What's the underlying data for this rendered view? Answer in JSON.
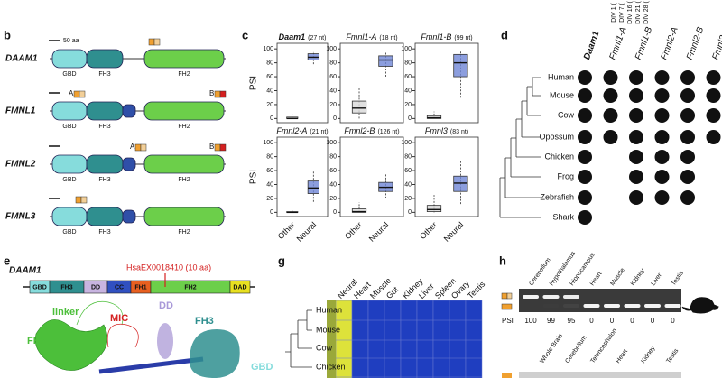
{
  "top_labels": [
    "DIV 1 (",
    "DIV 7 (",
    "DIV 16 (",
    "DIV 21 (",
    "DIV 28 ("
  ],
  "panel_b": {
    "label": "b",
    "scale": "50 aa",
    "proteins": [
      {
        "name": "DAAM1",
        "domains": [
          "GBD",
          "FH3",
          "FH2"
        ],
        "exons": []
      },
      {
        "name": "FMNL1",
        "domains": [
          "GBD",
          "FH3",
          "FH2"
        ],
        "exons": [
          "A",
          "B"
        ]
      },
      {
        "name": "FMNL2",
        "domains": [
          "GBD",
          "FH3",
          "FH2"
        ],
        "exons": [
          "A",
          "B"
        ]
      },
      {
        "name": "FMNL3",
        "domains": [
          "GBD",
          "FH3",
          "FH2"
        ],
        "exons": []
      }
    ]
  },
  "panel_c": {
    "label": "c",
    "y_label": "PSI",
    "ylim": [
      -6,
      108
    ],
    "yticks": [
      0,
      20,
      40,
      60,
      80,
      100
    ],
    "groups": [
      "Other",
      "Neural"
    ],
    "plots": [
      {
        "gene": "Daam1",
        "length": "(27 nt)",
        "boxes": [
          {
            "min": 0,
            "q1": 0,
            "median": 0,
            "q3": 2,
            "max": 6
          },
          {
            "min": 78,
            "q1": 84,
            "median": 88,
            "q3": 93,
            "max": 97
          }
        ]
      },
      {
        "gene": "Fmnl1-A",
        "length": "(18 nt)",
        "boxes": [
          {
            "min": 0,
            "q1": 8,
            "median": 15,
            "q3": 25,
            "max": 45
          },
          {
            "min": 60,
            "q1": 75,
            "median": 84,
            "q3": 90,
            "max": 95
          }
        ]
      },
      {
        "gene": "Fmnl1-B",
        "length": "(99 nt)",
        "boxes": [
          {
            "min": 0,
            "q1": 0,
            "median": 1,
            "q3": 4,
            "max": 10
          },
          {
            "min": 30,
            "q1": 60,
            "median": 80,
            "q3": 92,
            "max": 98
          }
        ]
      },
      {
        "gene": "Fmnl2-A",
        "length": "(21 nt)",
        "boxes": [
          {
            "min": 0,
            "q1": 0,
            "median": 0,
            "q3": 1,
            "max": 3
          },
          {
            "min": 15,
            "q1": 27,
            "median": 35,
            "q3": 45,
            "max": 60
          }
        ]
      },
      {
        "gene": "Fmnl2-B",
        "length": "(126 nt)",
        "boxes": [
          {
            "min": 0,
            "q1": 0,
            "median": 1,
            "q3": 5,
            "max": 14
          },
          {
            "min": 20,
            "q1": 30,
            "median": 36,
            "q3": 43,
            "max": 55
          }
        ]
      },
      {
        "gene": "Fmnl3",
        "length": "(83 nt)",
        "boxes": [
          {
            "min": 0,
            "q1": 1,
            "median": 4,
            "q3": 10,
            "max": 25
          },
          {
            "min": 12,
            "q1": 30,
            "median": 42,
            "q3": 52,
            "max": 75
          }
        ]
      }
    ]
  },
  "panel_d": {
    "label": "d",
    "genes": [
      "Daam1",
      "Fmnl1-A",
      "Fmnl1-B",
      "Fmnl2-A",
      "Fmnl2-B",
      "Fmnl3"
    ],
    "species": [
      "Human",
      "Mouse",
      "Cow",
      "Opossum",
      "Chicken",
      "Frog",
      "Zebrafish",
      "Shark"
    ],
    "presence": [
      [
        true,
        true,
        true,
        true,
        true,
        true
      ],
      [
        true,
        true,
        true,
        true,
        true,
        true
      ],
      [
        true,
        true,
        true,
        true,
        true,
        true
      ],
      [
        true,
        true,
        true,
        true,
        true,
        true
      ],
      [
        true,
        false,
        true,
        true,
        true,
        false
      ],
      [
        true,
        false,
        true,
        true,
        true,
        false
      ],
      [
        true,
        false,
        true,
        true,
        true,
        false
      ],
      [
        true,
        false,
        false,
        false,
        false,
        false
      ]
    ]
  },
  "panel_e": {
    "label": "e",
    "protein": "DAAM1",
    "domains": [
      "GBD",
      "FH3",
      "DD",
      "CC",
      "FH1",
      "FH2",
      "DAD"
    ],
    "exon": "HsaEX0018410 (10 aa)",
    "structure_labels": [
      "linker",
      "MIC",
      "DD",
      "FH3",
      "FH2",
      "GBD"
    ]
  },
  "panel_g": {
    "label": "g",
    "tissues": [
      "Neural",
      "Heart",
      "Muscle",
      "Gut",
      "Kidney",
      "Liver",
      "Spleen",
      "Ovary",
      "Testis"
    ],
    "species": [
      "Human",
      "Mouse",
      "Cow",
      "Chicken"
    ]
  },
  "panel_h": {
    "label": "h",
    "tissues": [
      "Cerebellum",
      "Hypothalamus",
      "Hippocampus",
      "Heart",
      "Muscle",
      "Kidney",
      "Liver",
      "Testis"
    ],
    "psi_label": "PSI",
    "psi": [
      100,
      99,
      95,
      0,
      0,
      0,
      0,
      0
    ],
    "tissues2": [
      "Whole Brain",
      "Cerebellum",
      "Telencephalon",
      "Heart",
      "Kidney",
      "Testis"
    ]
  }
}
